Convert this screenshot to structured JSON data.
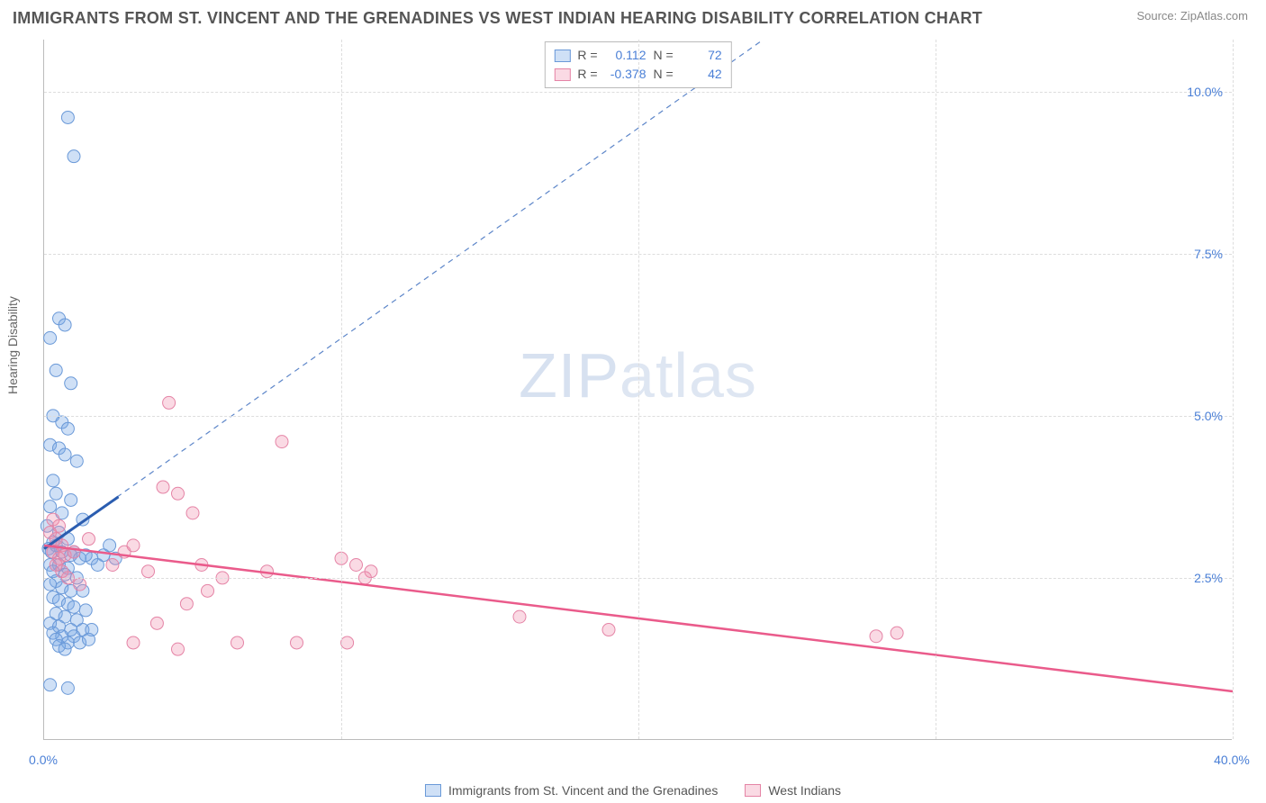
{
  "header": {
    "title": "IMMIGRANTS FROM ST. VINCENT AND THE GRENADINES VS WEST INDIAN HEARING DISABILITY CORRELATION CHART",
    "source_prefix": "Source: ",
    "source_name": "ZipAtlas.com"
  },
  "axes": {
    "y_title": "Hearing Disability",
    "x_min": 0,
    "x_max": 40,
    "y_min": 0,
    "y_max": 10.8,
    "x_ticks": [
      0,
      10,
      20,
      30,
      40
    ],
    "x_tick_labels": [
      "0.0%",
      "",
      "",
      "",
      "40.0%"
    ],
    "y_ticks": [
      2.5,
      5.0,
      7.5,
      10.0
    ],
    "y_tick_labels": [
      "2.5%",
      "5.0%",
      "7.5%",
      "10.0%"
    ],
    "tick_color": "#4a7fd6",
    "grid_color": "#dddddd",
    "axis_color": "#bbbbbb"
  },
  "watermark": {
    "text_bold": "ZIP",
    "text_thin": "atlas"
  },
  "series": [
    {
      "name": "Immigrants from St. Vincent and the Grenadines",
      "color_fill": "rgba(118,167,230,0.35)",
      "color_stroke": "#6a99d8",
      "marker_radius": 7,
      "R": "0.112",
      "N": "72",
      "trend_solid": {
        "x1": 0,
        "y1": 2.95,
        "x2": 2.5,
        "y2": 3.75,
        "color": "#2b5db0",
        "width": 3
      },
      "trend_dashed": {
        "x1": 0,
        "y1": 2.95,
        "x2": 24.2,
        "y2": 10.8,
        "color": "#5d86c9",
        "width": 1.2,
        "dash": "6,5"
      },
      "points": [
        [
          0.8,
          9.6
        ],
        [
          1.0,
          9.0
        ],
        [
          0.5,
          6.5
        ],
        [
          0.7,
          6.4
        ],
        [
          0.2,
          6.2
        ],
        [
          0.4,
          5.7
        ],
        [
          0.9,
          5.5
        ],
        [
          0.3,
          5.0
        ],
        [
          0.6,
          4.9
        ],
        [
          0.8,
          4.8
        ],
        [
          0.2,
          4.55
        ],
        [
          0.5,
          4.5
        ],
        [
          0.7,
          4.4
        ],
        [
          1.1,
          4.3
        ],
        [
          0.3,
          4.0
        ],
        [
          0.4,
          3.8
        ],
        [
          0.9,
          3.7
        ],
        [
          0.2,
          3.6
        ],
        [
          0.6,
          3.5
        ],
        [
          1.3,
          3.4
        ],
        [
          0.1,
          3.3
        ],
        [
          0.5,
          3.2
        ],
        [
          0.8,
          3.1
        ],
        [
          0.3,
          3.05
        ],
        [
          0.4,
          3.0
        ],
        [
          0.15,
          2.95
        ],
        [
          0.25,
          2.9
        ],
        [
          0.6,
          2.9
        ],
        [
          0.9,
          2.85
        ],
        [
          1.2,
          2.8
        ],
        [
          1.6,
          2.8
        ],
        [
          2.0,
          2.85
        ],
        [
          2.4,
          2.8
        ],
        [
          0.2,
          2.7
        ],
        [
          0.5,
          2.7
        ],
        [
          0.8,
          2.65
        ],
        [
          0.3,
          2.6
        ],
        [
          0.7,
          2.55
        ],
        [
          1.1,
          2.5
        ],
        [
          0.4,
          2.45
        ],
        [
          0.2,
          2.4
        ],
        [
          0.6,
          2.35
        ],
        [
          0.9,
          2.3
        ],
        [
          1.3,
          2.3
        ],
        [
          0.3,
          2.2
        ],
        [
          0.5,
          2.15
        ],
        [
          0.8,
          2.1
        ],
        [
          1.0,
          2.05
        ],
        [
          1.4,
          2.0
        ],
        [
          0.4,
          1.95
        ],
        [
          0.7,
          1.9
        ],
        [
          1.1,
          1.85
        ],
        [
          0.2,
          1.8
        ],
        [
          0.5,
          1.75
        ],
        [
          0.9,
          1.7
        ],
        [
          1.3,
          1.7
        ],
        [
          1.6,
          1.7
        ],
        [
          0.3,
          1.65
        ],
        [
          0.6,
          1.6
        ],
        [
          1.0,
          1.6
        ],
        [
          0.4,
          1.55
        ],
        [
          0.8,
          1.5
        ],
        [
          1.2,
          1.5
        ],
        [
          1.5,
          1.55
        ],
        [
          0.5,
          1.45
        ],
        [
          0.7,
          1.4
        ],
        [
          0.2,
          0.85
        ],
        [
          0.8,
          0.8
        ],
        [
          1.0,
          2.9
        ],
        [
          1.4,
          2.85
        ],
        [
          1.8,
          2.7
        ],
        [
          2.2,
          3.0
        ]
      ]
    },
    {
      "name": "West Indians",
      "color_fill": "rgba(240,140,170,0.32)",
      "color_stroke": "#e584a6",
      "marker_radius": 7,
      "R": "-0.378",
      "N": "42",
      "trend_solid": {
        "x1": 0,
        "y1": 3.0,
        "x2": 40,
        "y2": 0.75,
        "color": "#ea5b8b",
        "width": 2.5
      },
      "points": [
        [
          0.3,
          3.4
        ],
        [
          0.5,
          3.3
        ],
        [
          0.2,
          3.2
        ],
        [
          0.4,
          3.1
        ],
        [
          0.6,
          3.0
        ],
        [
          0.3,
          2.9
        ],
        [
          0.7,
          2.85
        ],
        [
          0.5,
          2.8
        ],
        [
          0.4,
          2.7
        ],
        [
          0.6,
          2.6
        ],
        [
          0.8,
          2.5
        ],
        [
          1.0,
          2.9
        ],
        [
          1.5,
          3.1
        ],
        [
          2.3,
          2.7
        ],
        [
          2.7,
          2.9
        ],
        [
          3.5,
          2.6
        ],
        [
          3.0,
          3.0
        ],
        [
          4.2,
          5.2
        ],
        [
          4.0,
          3.9
        ],
        [
          4.5,
          3.8
        ],
        [
          5.0,
          3.5
        ],
        [
          5.3,
          2.7
        ],
        [
          4.8,
          2.1
        ],
        [
          5.5,
          2.3
        ],
        [
          6.0,
          2.5
        ],
        [
          6.5,
          1.5
        ],
        [
          3.0,
          1.5
        ],
        [
          3.8,
          1.8
        ],
        [
          4.5,
          1.4
        ],
        [
          7.5,
          2.6
        ],
        [
          8.0,
          4.6
        ],
        [
          8.5,
          1.5
        ],
        [
          10.0,
          2.8
        ],
        [
          10.5,
          2.7
        ],
        [
          11.0,
          2.6
        ],
        [
          10.8,
          2.5
        ],
        [
          10.2,
          1.5
        ],
        [
          16.0,
          1.9
        ],
        [
          19.0,
          1.7
        ],
        [
          28.0,
          1.6
        ],
        [
          28.7,
          1.65
        ],
        [
          1.2,
          2.4
        ]
      ]
    }
  ],
  "legend_top": {
    "R_label": "R =",
    "N_label": "N ="
  },
  "legend_bottom_labels": [
    "Immigrants from St. Vincent and the Grenadines",
    "West Indians"
  ]
}
